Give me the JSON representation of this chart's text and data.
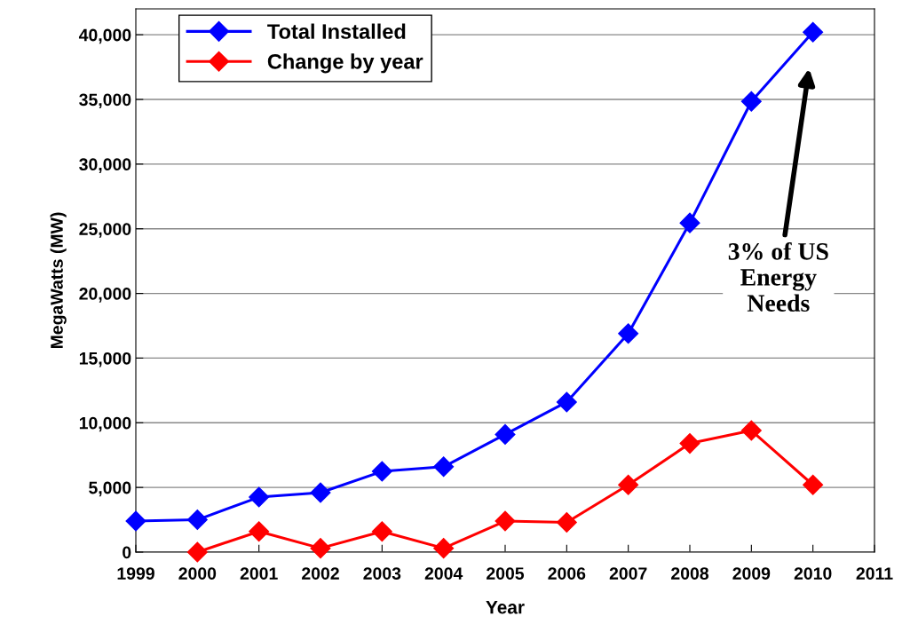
{
  "chart_data": {
    "type": "line",
    "xlabel": "Year",
    "ylabel": "MegaWatts (MW)",
    "xlim": [
      1999,
      2011
    ],
    "xticks": [
      1999,
      2000,
      2001,
      2002,
      2003,
      2004,
      2005,
      2006,
      2007,
      2008,
      2009,
      2010,
      2011
    ],
    "ylim": [
      0,
      42000
    ],
    "yticks": [
      {
        "value": 0,
        "label": "0"
      },
      {
        "value": 5000,
        "label": "5,000"
      },
      {
        "value": 10000,
        "label": "10,000"
      },
      {
        "value": 15000,
        "label": "15,000"
      },
      {
        "value": 20000,
        "label": "20,000"
      },
      {
        "value": 25000,
        "label": "25,000"
      },
      {
        "value": 30000,
        "label": "30,000"
      },
      {
        "value": 35000,
        "label": "35,000"
      },
      {
        "value": 40000,
        "label": "40,000"
      }
    ],
    "grid": "y",
    "legend": "top left",
    "marker": "diamond",
    "line_style": "solid",
    "series": [
      {
        "name": "Total Installed",
        "color": "#0000ff",
        "x": [
          1999,
          2000,
          2001,
          2002,
          2003,
          2004,
          2005,
          2006,
          2007,
          2008,
          2009,
          2010
        ],
        "values": [
          2400,
          2500,
          4250,
          4600,
          6240,
          6600,
          9100,
          11600,
          16900,
          25450,
          34850,
          40200
        ]
      },
      {
        "name": "Change by year",
        "color": "#ff0000",
        "x": [
          2000,
          2001,
          2002,
          2003,
          2004,
          2005,
          2006,
          2007,
          2008,
          2009,
          2010
        ],
        "values": [
          0,
          1600,
          300,
          1600,
          300,
          2400,
          2300,
          5200,
          8400,
          9400,
          5200
        ]
      }
    ],
    "annotations": [
      "3% of US\nEnergy\nNeeds"
    ]
  }
}
